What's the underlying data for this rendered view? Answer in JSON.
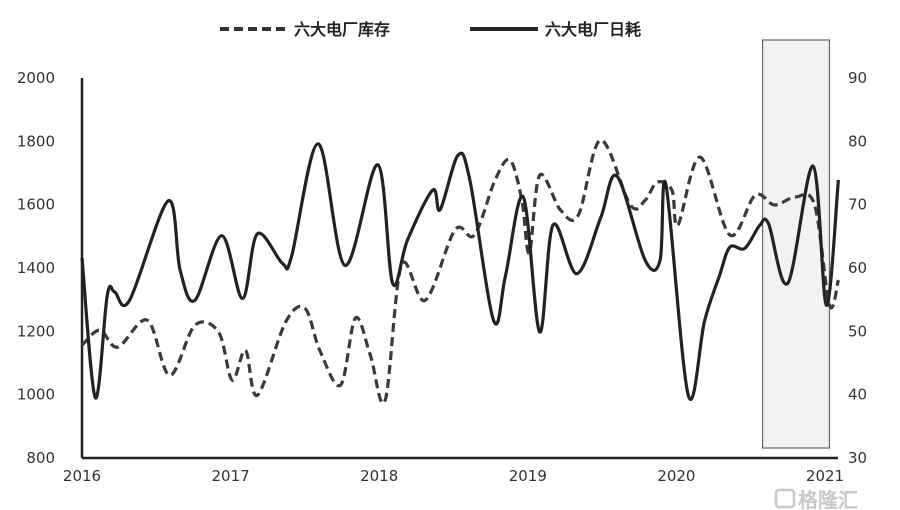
{
  "chart_data": {
    "type": "line",
    "title": "",
    "xlabel": "",
    "ylabel_left": "",
    "ylabel_right": "",
    "x_ticks": [
      "2016",
      "2017",
      "2018",
      "2019",
      "2020",
      "2021"
    ],
    "xlim": [
      2016,
      2021.1
    ],
    "y_left_ticks": [
      "800",
      "1000",
      "1200",
      "1400",
      "1600",
      "1800",
      "2000"
    ],
    "ylim_left": [
      800,
      2000
    ],
    "y_right_ticks": [
      "30",
      "40",
      "50",
      "60",
      "70",
      "80",
      "90"
    ],
    "ylim_right": [
      30,
      90
    ],
    "grid": false,
    "legend_position": "top",
    "highlight_x_range": [
      2020.58,
      2021.03
    ],
    "series": [
      {
        "name": "六大电厂库存",
        "axis": "left",
        "style": "dashed",
        "color": "#3a3a3a",
        "points": [
          [
            2016.0,
            1156
          ],
          [
            2016.12,
            1204
          ],
          [
            2016.24,
            1150
          ],
          [
            2016.44,
            1235
          ],
          [
            2016.59,
            1061
          ],
          [
            2016.76,
            1219
          ],
          [
            2016.92,
            1197
          ],
          [
            2017.01,
            1046
          ],
          [
            2017.1,
            1140
          ],
          [
            2017.18,
            998
          ],
          [
            2017.37,
            1229
          ],
          [
            2017.5,
            1273
          ],
          [
            2017.6,
            1140
          ],
          [
            2017.74,
            1030
          ],
          [
            2017.84,
            1242
          ],
          [
            2017.94,
            1125
          ],
          [
            2018.04,
            982
          ],
          [
            2018.15,
            1409
          ],
          [
            2018.31,
            1298
          ],
          [
            2018.51,
            1520
          ],
          [
            2018.64,
            1504
          ],
          [
            2018.78,
            1678
          ],
          [
            2018.88,
            1741
          ],
          [
            2018.96,
            1614
          ],
          [
            2019.01,
            1447
          ],
          [
            2019.08,
            1693
          ],
          [
            2019.22,
            1583
          ],
          [
            2019.34,
            1567
          ],
          [
            2019.49,
            1804
          ],
          [
            2019.69,
            1599
          ],
          [
            2019.79,
            1614
          ],
          [
            2019.87,
            1671
          ],
          [
            2019.97,
            1646
          ],
          [
            2020.01,
            1535
          ],
          [
            2020.16,
            1750
          ],
          [
            2020.36,
            1504
          ],
          [
            2020.53,
            1630
          ],
          [
            2020.66,
            1599
          ],
          [
            2020.8,
            1624
          ],
          [
            2020.93,
            1599
          ],
          [
            2021.03,
            1283
          ],
          [
            2021.09,
            1362
          ]
        ]
      },
      {
        "name": "六大电厂日耗",
        "axis": "right",
        "style": "solid",
        "color": "#222222",
        "points": [
          [
            2016.0,
            61.6
          ],
          [
            2016.09,
            39.5
          ],
          [
            2016.17,
            55.7
          ],
          [
            2016.22,
            56.2
          ],
          [
            2016.32,
            54.9
          ],
          [
            2016.58,
            70.6
          ],
          [
            2016.66,
            59.7
          ],
          [
            2016.76,
            54.9
          ],
          [
            2016.94,
            65.1
          ],
          [
            2017.08,
            55.2
          ],
          [
            2017.18,
            65.4
          ],
          [
            2017.35,
            60.7
          ],
          [
            2017.41,
            61.8
          ],
          [
            2017.59,
            79.6
          ],
          [
            2017.77,
            60.4
          ],
          [
            2017.99,
            76.3
          ],
          [
            2018.09,
            57.6
          ],
          [
            2018.19,
            64.4
          ],
          [
            2018.36,
            72.3
          ],
          [
            2018.41,
            69.2
          ],
          [
            2018.53,
            77.8
          ],
          [
            2018.61,
            73.9
          ],
          [
            2018.77,
            51.7
          ],
          [
            2018.85,
            58.8
          ],
          [
            2018.97,
            71.2
          ],
          [
            2019.08,
            49.9
          ],
          [
            2019.17,
            66.8
          ],
          [
            2019.33,
            59.1
          ],
          [
            2019.49,
            67.9
          ],
          [
            2019.6,
            74.5
          ],
          [
            2019.79,
            61.2
          ],
          [
            2019.89,
            61.2
          ],
          [
            2019.93,
            73.1
          ],
          [
            2020.08,
            39.9
          ],
          [
            2020.19,
            51.7
          ],
          [
            2020.29,
            58.8
          ],
          [
            2020.36,
            63.3
          ],
          [
            2020.46,
            63.1
          ],
          [
            2020.56,
            66.7
          ],
          [
            2020.62,
            67.0
          ],
          [
            2020.75,
            57.6
          ],
          [
            2020.92,
            76.1
          ],
          [
            2021.01,
            54.1
          ],
          [
            2021.09,
            73.9
          ]
        ]
      }
    ]
  },
  "watermark": "格隆汇"
}
